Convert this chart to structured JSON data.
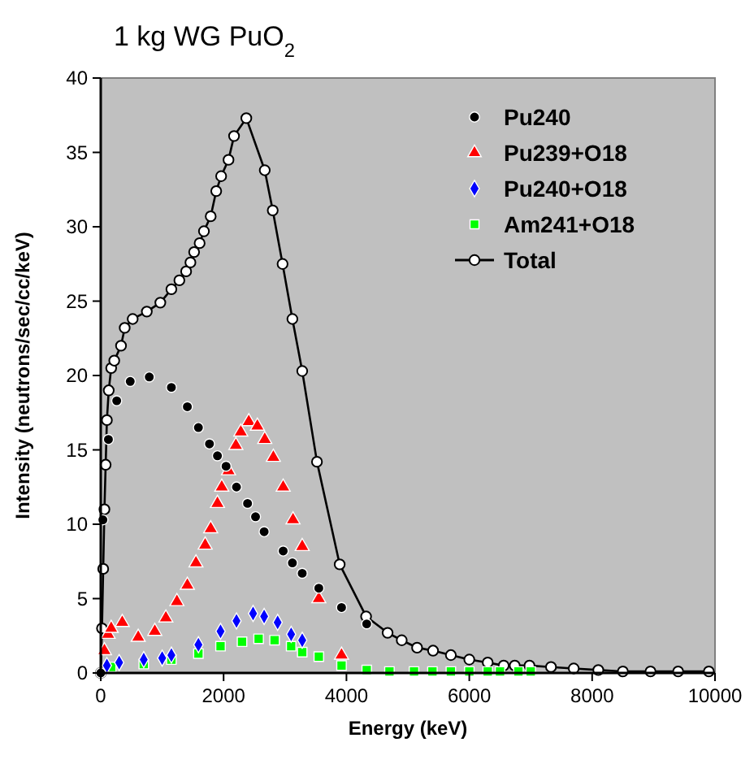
{
  "chart_data": {
    "type": "scatter",
    "title": "1 kg WG PuO$_{2}$",
    "xlabel": "Energy (keV)",
    "ylabel": "Intensity (neutrons/sec/cc/keV)",
    "xlim": [
      0,
      10000
    ],
    "xticks": [
      0,
      2000,
      4000,
      6000,
      8000,
      10000
    ],
    "ylim": [
      0,
      40
    ],
    "yticks": [
      0,
      5,
      10,
      15,
      20,
      25,
      30,
      35,
      40
    ],
    "grid": false,
    "legend": "top right",
    "series": [
      {
        "name": "Pu240",
        "color": "#000000",
        "marker": "circle",
        "x": [
          0,
          35,
          125,
          260,
          480,
          790,
          1150,
          1410,
          1590,
          1770,
          1900,
          2040,
          2210,
          2390,
          2520,
          2660,
          2970,
          3120,
          3280,
          3550,
          3920,
          4330
        ],
        "values": [
          0,
          10.3,
          15.7,
          18.3,
          19.6,
          19.9,
          19.2,
          17.9,
          16.5,
          15.4,
          14.6,
          13.9,
          12.5,
          11.4,
          10.5,
          9.5,
          8.2,
          7.4,
          6.7,
          5.7,
          4.4,
          3.3
        ]
      },
      {
        "name": "Pu239+O18",
        "color": "#ff0000",
        "marker": "triangle",
        "x": [
          60,
          120,
          170,
          350,
          610,
          880,
          1060,
          1240,
          1410,
          1550,
          1700,
          1790,
          1900,
          1970,
          2080,
          2200,
          2280,
          2410,
          2550,
          2670,
          2810,
          2970,
          3130,
          3280,
          3550,
          3920
        ],
        "values": [
          1.5,
          2.6,
          3.0,
          3.4,
          2.4,
          2.8,
          3.7,
          4.8,
          5.9,
          7.4,
          8.6,
          9.7,
          11.4,
          12.5,
          13.6,
          15.3,
          16.2,
          16.9,
          16.6,
          15.7,
          14.5,
          12.5,
          10.3,
          8.5,
          5.0,
          1.2
        ]
      },
      {
        "name": "Pu240+O18",
        "color": "#0000ff",
        "marker": "diamond",
        "x": [
          100,
          300,
          700,
          1000,
          1150,
          1590,
          1950,
          2210,
          2480,
          2660,
          2880,
          3100,
          3280
        ],
        "values": [
          0.5,
          0.7,
          0.9,
          1.0,
          1.2,
          1.9,
          2.8,
          3.5,
          4.0,
          3.8,
          3.4,
          2.6,
          2.2
        ]
      },
      {
        "name": "Am241+O18",
        "color": "#00ff00",
        "marker": "square",
        "x": [
          170,
          700,
          1150,
          1590,
          1950,
          2300,
          2570,
          2830,
          3100,
          3280,
          3550,
          3920,
          4330,
          4700,
          5100,
          5400,
          5700,
          6000,
          6300,
          6500,
          6800,
          7000
        ],
        "values": [
          0.4,
          0.6,
          0.9,
          1.3,
          1.8,
          2.1,
          2.3,
          2.2,
          1.8,
          1.4,
          1.1,
          0.5,
          0.2,
          0.1,
          0.1,
          0.1,
          0.1,
          0.1,
          0.1,
          0.1,
          0.1,
          0.1
        ]
      },
      {
        "name": "Total",
        "type": "line",
        "color": "#000000",
        "marker": "circle",
        "x": [
          0,
          20,
          40,
          60,
          80,
          100,
          130,
          170,
          220,
          330,
          390,
          520,
          750,
          970,
          1150,
          1280,
          1390,
          1460,
          1520,
          1610,
          1680,
          1790,
          1880,
          1960,
          2080,
          2170,
          2370,
          2670,
          2800,
          2960,
          3120,
          3280,
          3520,
          3890,
          4320,
          4670,
          4900,
          5150,
          5410,
          5700,
          6000,
          6300,
          6560,
          6740,
          6980,
          7330,
          7700,
          8100,
          8500,
          8950,
          9400,
          9900
        ],
        "values": [
          0,
          3,
          7,
          11,
          14,
          17,
          19,
          20.5,
          21.0,
          22.0,
          23.2,
          23.8,
          24.3,
          24.9,
          25.8,
          26.4,
          27.0,
          27.6,
          28.3,
          28.9,
          29.7,
          30.7,
          32.4,
          33.4,
          34.5,
          36.1,
          37.3,
          33.8,
          31.1,
          27.5,
          23.8,
          20.3,
          14.2,
          7.3,
          3.8,
          2.7,
          2.2,
          1.7,
          1.5,
          1.2,
          0.9,
          0.7,
          0.5,
          0.5,
          0.5,
          0.4,
          0.3,
          0.2,
          0.1,
          0.1,
          0.1,
          0.1
        ]
      }
    ]
  }
}
